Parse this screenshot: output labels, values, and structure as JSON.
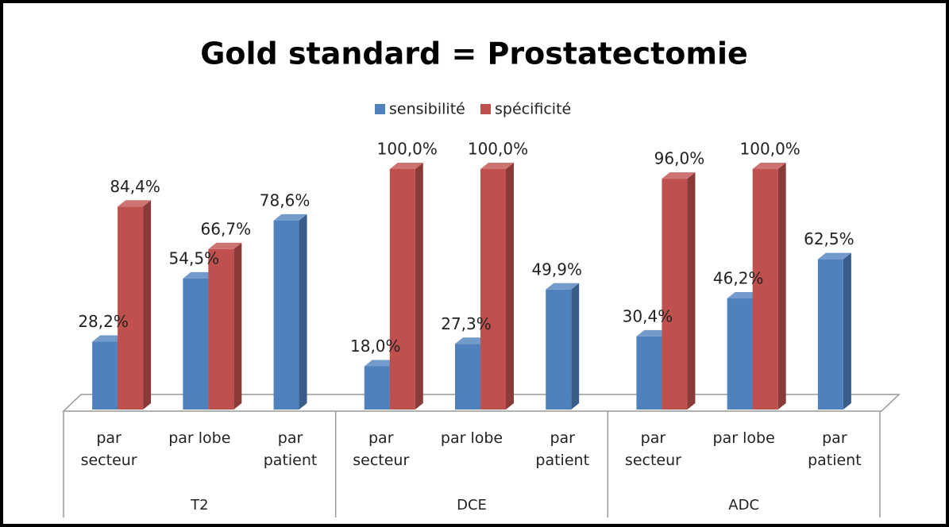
{
  "chart_data": {
    "type": "bar3d",
    "title": "Gold standard = Prostatectomie",
    "groups": [
      "T2",
      "DCE",
      "ADC"
    ],
    "categories": [
      "par\nsecteur",
      "par lobe",
      "par\npatient",
      "par\nsecteur",
      "par lobe",
      "par\npatient",
      "par\nsecteur",
      "par lobe",
      "par\npatient"
    ],
    "series": [
      {
        "name": "sensibilité",
        "color": "#4f81bd",
        "values": [
          28.2,
          54.5,
          78.6,
          18.0,
          27.3,
          49.9,
          30.4,
          46.2,
          62.5
        ],
        "value_labels": [
          "28,2%",
          "54,5%",
          "78,6%",
          "18,0%",
          "27,3%",
          "49,9%",
          "30,4%",
          "46,2%",
          "62,5%"
        ]
      },
      {
        "name": "spécificité",
        "color": "#c0504d",
        "values": [
          84.4,
          66.7,
          null,
          100.0,
          100.0,
          null,
          96.0,
          100.0,
          null
        ],
        "value_labels": [
          "84,4%",
          "66,7%",
          null,
          "100,0%",
          "100,0%",
          null,
          "96,0%",
          "100,0%",
          null
        ]
      }
    ],
    "legend": "top"
  }
}
